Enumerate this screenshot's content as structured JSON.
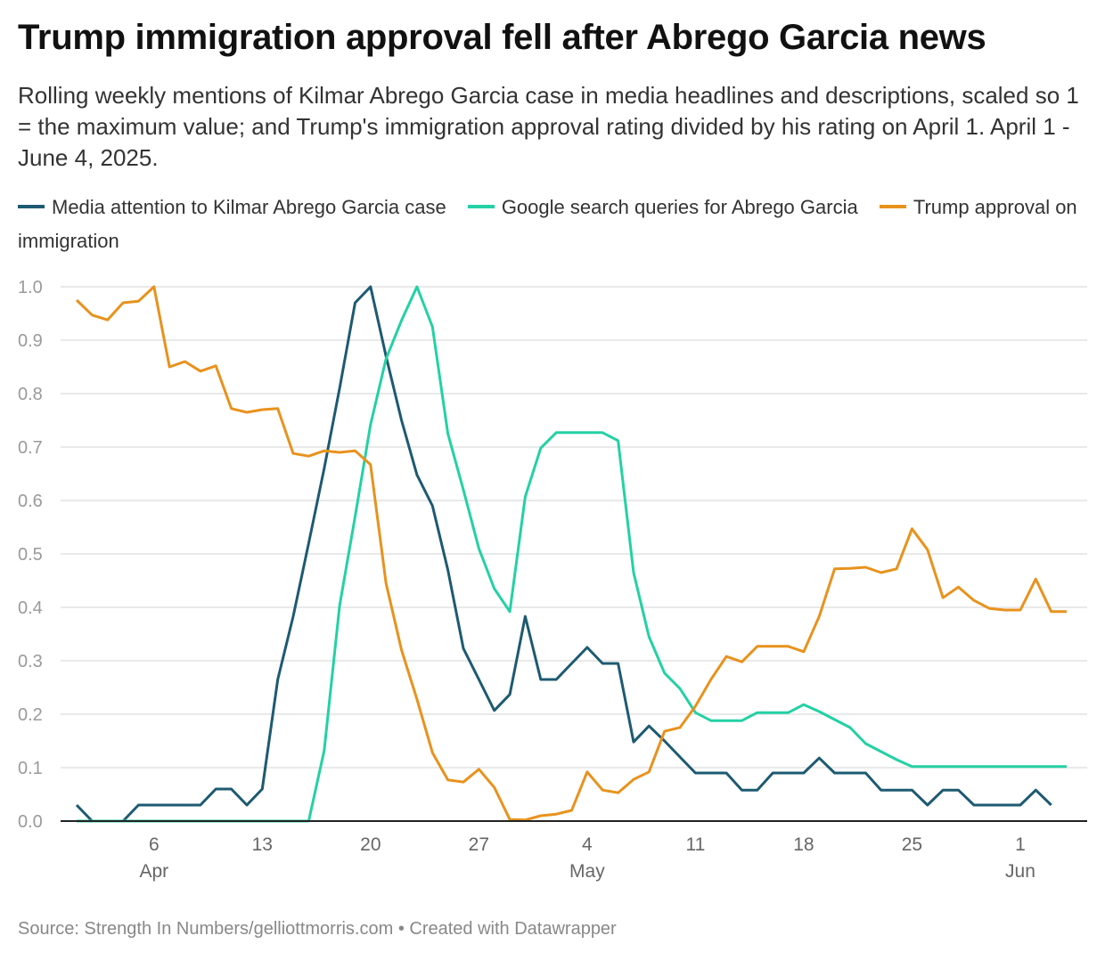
{
  "chart_data": {
    "type": "line",
    "title": "Trump immigration approval fell after Abrego Garcia news",
    "subtitle": "Rolling weekly mentions of Kilmar Abrego Garcia case in media headlines and descriptions, scaled so 1 = the maximum value; and Trump's immigration approval rating divided by his rating on April 1. April 1 - June 4, 2025.",
    "xlabel": "",
    "ylabel": "",
    "ylim": [
      0,
      1
    ],
    "yticks": [
      "0.0",
      "0.1",
      "0.2",
      "0.3",
      "0.4",
      "0.5",
      "0.6",
      "0.7",
      "0.8",
      "0.9",
      "1.0"
    ],
    "xlim_days_from_apr1": [
      0,
      64
    ],
    "xticks": [
      {
        "day": 5,
        "label": "6",
        "sublabel": "Apr"
      },
      {
        "day": 12,
        "label": "13",
        "sublabel": ""
      },
      {
        "day": 19,
        "label": "20",
        "sublabel": ""
      },
      {
        "day": 26,
        "label": "27",
        "sublabel": ""
      },
      {
        "day": 33,
        "label": "4",
        "sublabel": "May"
      },
      {
        "day": 40,
        "label": "11",
        "sublabel": ""
      },
      {
        "day": 47,
        "label": "18",
        "sublabel": ""
      },
      {
        "day": 54,
        "label": "25",
        "sublabel": ""
      },
      {
        "day": 61,
        "label": "1",
        "sublabel": "Jun"
      }
    ],
    "grid": true,
    "legend_position": "top-left",
    "x_start_date": "2025-04-01",
    "series": [
      {
        "name": "Media attention to Kilmar Abrego Garcia case",
        "color": "#1d5a72",
        "values": [
          0.03,
          0.0,
          0.0,
          0.0,
          0.03,
          0.03,
          0.03,
          0.03,
          0.03,
          0.06,
          0.06,
          0.03,
          0.06,
          0.265,
          0.383,
          0.52,
          0.66,
          0.81,
          0.97,
          1.0,
          0.87,
          0.75,
          0.648,
          0.59,
          0.47,
          0.323,
          0.265,
          0.207,
          0.237,
          0.383,
          0.265,
          0.265,
          0.295,
          0.325,
          0.295,
          0.295,
          0.148,
          0.178,
          0.15,
          0.12,
          0.09,
          0.09,
          0.09,
          0.058,
          0.058,
          0.09,
          0.09,
          0.09,
          0.118,
          0.09,
          0.09,
          0.09,
          0.058,
          0.058,
          0.058,
          0.03,
          0.058,
          0.058,
          0.03,
          0.03,
          0.03,
          0.03,
          0.058,
          0.03
        ]
      },
      {
        "name": "Google search queries for Abrego Garcia",
        "color": "#23d1a4",
        "values": [
          0.0,
          0.0,
          0.0,
          0.0,
          0.0,
          0.0,
          0.0,
          0.0,
          0.0,
          0.0,
          0.0,
          0.0,
          0.0,
          0.0,
          0.0,
          0.0,
          0.132,
          0.403,
          0.57,
          0.742,
          0.865,
          0.937,
          1.0,
          0.925,
          0.725,
          0.62,
          0.51,
          0.435,
          0.392,
          0.607,
          0.698,
          0.727,
          0.727,
          0.727,
          0.727,
          0.712,
          0.465,
          0.345,
          0.277,
          0.248,
          0.203,
          0.188,
          0.188,
          0.188,
          0.203,
          0.203,
          0.203,
          0.218,
          0.205,
          0.19,
          0.175,
          0.145,
          0.13,
          0.115,
          0.102,
          0.102,
          0.102,
          0.102,
          0.102,
          0.102,
          0.102,
          0.102,
          0.102,
          0.102,
          0.102
        ]
      },
      {
        "name": "Trump approval on immigration",
        "color": "#e8921c",
        "values": [
          0.975,
          0.947,
          0.938,
          0.97,
          0.973,
          1.0,
          0.85,
          0.86,
          0.842,
          0.852,
          0.772,
          0.765,
          0.77,
          0.772,
          0.688,
          0.683,
          0.693,
          0.69,
          0.693,
          0.667,
          0.445,
          0.32,
          0.228,
          0.128,
          0.077,
          0.073,
          0.097,
          0.063,
          0.003,
          0.002,
          0.01,
          0.013,
          0.02,
          0.092,
          0.058,
          0.053,
          0.078,
          0.092,
          0.168,
          0.175,
          0.215,
          0.265,
          0.308,
          0.298,
          0.327,
          0.327,
          0.327,
          0.317,
          0.383,
          0.472,
          0.473,
          0.475,
          0.465,
          0.472,
          0.547,
          0.508,
          0.418,
          0.438,
          0.413,
          0.398,
          0.395,
          0.395,
          0.453,
          0.392,
          0.392
        ]
      }
    ]
  },
  "legend": {
    "items": [
      {
        "label": "Media attention to Kilmar Abrego Garcia case",
        "color": "#1d5a72"
      },
      {
        "label": "Google search queries for Abrego Garcia",
        "color": "#23d1a4"
      },
      {
        "label": "Trump approval on immigration",
        "color": "#e8921c"
      }
    ]
  },
  "footer": {
    "source": "Source: Strength In Numbers/gelliottmorris.com • Created with Datawrapper"
  }
}
